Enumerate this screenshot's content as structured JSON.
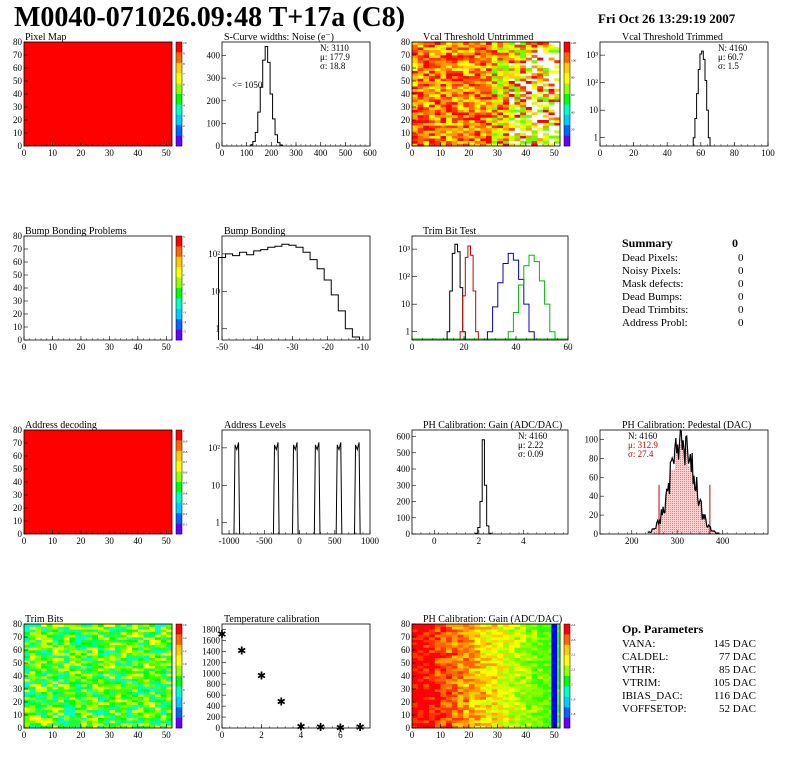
{
  "header": {
    "title": "M0040-071026.09:48 T+17a (C8)",
    "date": "Fri Oct 26 13:29:19 2007"
  },
  "colors": {
    "hist_black": "#000000",
    "trim_red": "#cc0000",
    "trim_blue": "#0000cc",
    "trim_green": "#00bb00",
    "pedestal_fill": "#cc0000",
    "red_map": "#ff0000"
  },
  "summary": {
    "title": "Summary",
    "value": "0",
    "rows": [
      {
        "label": "Dead Pixels:",
        "value": "0"
      },
      {
        "label": "Noisy Pixels:",
        "value": "0"
      },
      {
        "label": "Mask defects:",
        "value": "0"
      },
      {
        "label": "Dead Bumps:",
        "value": "0"
      },
      {
        "label": "Dead Trimbits:",
        "value": "0"
      },
      {
        "label": "Address Probl:",
        "value": "0"
      }
    ]
  },
  "op_params": {
    "title": "Op. Parameters",
    "rows": [
      {
        "label": "VANA:",
        "value": "145 DAC"
      },
      {
        "label": "CALDEL:",
        "value": "77 DAC"
      },
      {
        "label": "VTHR:",
        "value": "85 DAC"
      },
      {
        "label": "VTRIM:",
        "value": "105 DAC"
      },
      {
        "label": "IBIAS_DAC:",
        "value": "116 DAC"
      },
      {
        "label": "VOFFSETOP:",
        "value": "52 DAC"
      }
    ]
  },
  "chart_data": [
    {
      "type": "heatmap",
      "title": "Pixel Map",
      "xticks": [
        0,
        10,
        20,
        30,
        40,
        50
      ],
      "yticks": [
        0,
        10,
        20,
        30,
        40,
        50,
        60,
        70,
        80
      ],
      "xlim": [
        0,
        52
      ],
      "ylim": [
        0,
        80
      ],
      "pattern": "uniform-red",
      "palette": {
        "ticks": [
          "1",
          "2",
          "3",
          "4",
          "5",
          "6",
          "7",
          "8",
          "9",
          "10"
        ]
      }
    },
    {
      "type": "histogram",
      "title": "S-Curve widths: Noise (e⁻)",
      "xticks": [
        0,
        100,
        200,
        300,
        400,
        500,
        600
      ],
      "yticks": [
        0,
        100,
        200,
        300,
        400
      ],
      "xlim": [
        0,
        600
      ],
      "ylim": [
        0,
        460
      ],
      "stats": [
        "N: 3110",
        "μ: 177.9",
        "σ: 18.8"
      ],
      "annotation": "<= 1050",
      "x": [
        120,
        130,
        140,
        150,
        160,
        170,
        180,
        190,
        200,
        210,
        220,
        230,
        240
      ],
      "values": [
        5,
        20,
        60,
        150,
        260,
        380,
        440,
        370,
        230,
        120,
        50,
        15,
        4
      ]
    },
    {
      "type": "heatmap",
      "title": "Vcal Threshold Untrimmed",
      "xticks": [
        0,
        10,
        20,
        30,
        40,
        50
      ],
      "yticks": [
        0,
        10,
        20,
        30,
        40,
        50,
        60,
        70,
        80
      ],
      "xlim": [
        0,
        52
      ],
      "ylim": [
        0,
        80
      ],
      "pattern": "noise-fade-right",
      "palette": {
        "ticks": [
          "20",
          "40",
          "60",
          "80",
          "100",
          "120"
        ]
      }
    },
    {
      "type": "histogram",
      "title": "Vcal Threshold Trimmed",
      "log": true,
      "xticks": [
        0,
        20,
        40,
        60,
        80,
        100
      ],
      "ytick_labels": [
        "1",
        "10",
        "10²",
        "10³"
      ],
      "xlim": [
        0,
        100
      ],
      "ylim": [
        0.5,
        3000
      ],
      "stats": [
        "N: 4160",
        "μ: 60.7",
        "σ:  1.5"
      ],
      "x": [
        56,
        57,
        58,
        59,
        60,
        61,
        62,
        63,
        64,
        65
      ],
      "values": [
        1,
        5,
        40,
        300,
        1100,
        1400,
        700,
        120,
        10,
        1
      ]
    },
    {
      "type": "heatmap",
      "title": "Bump Bonding Problems",
      "xticks": [
        0,
        10,
        20,
        30,
        40,
        50
      ],
      "yticks": [
        0,
        10,
        20,
        30,
        40,
        50,
        60,
        70,
        80
      ],
      "xlim": [
        0,
        52
      ],
      "ylim": [
        0,
        80
      ],
      "pattern": "empty",
      "palette": {
        "ticks": [
          "-5",
          "-4",
          "-3",
          "-2",
          "-1",
          "0",
          "1",
          "2",
          "3",
          "4",
          "5"
        ]
      }
    },
    {
      "type": "histogram",
      "title": "Bump Bonding",
      "log": true,
      "xticks": [
        -50,
        -40,
        -30,
        -20,
        -10
      ],
      "ytick_labels": [
        "1",
        "10",
        "10²"
      ],
      "xlim": [
        -50,
        -8
      ],
      "ylim": [
        0.5,
        300
      ],
      "x": [
        -50,
        -48,
        -46,
        -44,
        -42,
        -40,
        -38,
        -36,
        -34,
        -32,
        -30,
        -28,
        -26,
        -24,
        -22,
        -20,
        -18,
        -16,
        -14,
        -12
      ],
      "values": [
        80,
        100,
        90,
        110,
        95,
        120,
        130,
        150,
        160,
        180,
        170,
        150,
        110,
        70,
        40,
        20,
        8,
        3,
        1,
        0.6
      ]
    },
    {
      "type": "histogram",
      "title": "Trim Bit Test",
      "log": true,
      "xticks": [
        0,
        20,
        40,
        60
      ],
      "ytick_labels": [
        "1",
        "10",
        "10²",
        "10³"
      ],
      "xlim": [
        0,
        60
      ],
      "ylim": [
        0.5,
        3000
      ],
      "series": [
        {
          "name": "",
          "color": "black",
          "x": [
            14,
            15,
            16,
            17,
            18,
            19,
            20
          ],
          "values": [
            1,
            30,
            700,
            1500,
            800,
            40,
            1
          ]
        },
        {
          "name": "",
          "color": "red",
          "x": [
            19,
            20,
            21,
            22,
            23,
            24,
            25
          ],
          "values": [
            1,
            20,
            500,
            1300,
            600,
            30,
            1
          ]
        },
        {
          "name": "",
          "color": "blue",
          "x": [
            30,
            32,
            34,
            36,
            38,
            40,
            42,
            44,
            46
          ],
          "values": [
            1,
            8,
            60,
            300,
            700,
            400,
            80,
            10,
            1
          ]
        },
        {
          "name": "",
          "color": "green",
          "x": [
            38,
            40,
            42,
            44,
            46,
            48,
            50,
            52,
            54
          ],
          "values": [
            1,
            5,
            50,
            250,
            600,
            350,
            70,
            10,
            1
          ]
        }
      ]
    },
    {
      "type": "heatmap",
      "title": "Address decoding",
      "xticks": [
        0,
        10,
        20,
        30,
        40,
        50
      ],
      "yticks": [
        0,
        10,
        20,
        30,
        40,
        50,
        60,
        70,
        80
      ],
      "xlim": [
        0,
        52
      ],
      "ylim": [
        0,
        80
      ],
      "pattern": "uniform-red",
      "palette": {
        "ticks": [
          "0.1",
          "0.2",
          "0.3",
          "0.4",
          "0.5",
          "0.6",
          "0.7",
          "0.8",
          "0.9",
          "1"
        ]
      }
    },
    {
      "type": "histogram",
      "title": "Address Levels",
      "log": true,
      "xticks": [
        -1000,
        -500,
        0,
        500,
        1000
      ],
      "ytick_labels": [
        "1",
        "10",
        "10²"
      ],
      "xlim": [
        -1100,
        1000
      ],
      "ylim": [
        0.5,
        300
      ],
      "peaks": [
        -890,
        -330,
        -60,
        250,
        560,
        820
      ]
    },
    {
      "type": "histogram",
      "title": "PH Calibration: Gain (ADC/DAC)",
      "xticks": [
        0,
        2,
        4
      ],
      "yticks": [
        0,
        100,
        200,
        300,
        400,
        500,
        600
      ],
      "xlim": [
        -1,
        6
      ],
      "ylim": [
        0,
        640
      ],
      "stats": [
        "N: 4160",
        "μ: 2.22",
        "σ: 0.09"
      ],
      "x": [
        1.9,
        2.0,
        2.1,
        2.2,
        2.3,
        2.4,
        2.5
      ],
      "values": [
        5,
        40,
        200,
        580,
        300,
        50,
        5
      ]
    },
    {
      "type": "histogram",
      "title": "PH Calibration: Pedestal (DAC)",
      "xticks": [
        200,
        300,
        400
      ],
      "yticks": [
        0,
        20,
        40,
        60,
        80,
        100
      ],
      "xlim": [
        130,
        500
      ],
      "ylim": [
        0,
        110
      ],
      "stats": [
        "N: 4160",
        "μ: 312.9",
        "σ: 27.4"
      ],
      "x": [
        240,
        250,
        260,
        270,
        280,
        290,
        300,
        310,
        320,
        330,
        340,
        350,
        360,
        370,
        380,
        390
      ],
      "values": [
        2,
        5,
        12,
        25,
        45,
        68,
        85,
        95,
        90,
        72,
        55,
        35,
        18,
        8,
        3,
        1
      ]
    },
    {
      "type": "heatmap",
      "title": "Trim Bits",
      "xticks": [
        0,
        10,
        20,
        30,
        40,
        50
      ],
      "yticks": [
        0,
        10,
        20,
        30,
        40,
        50,
        60,
        70,
        80
      ],
      "xlim": [
        0,
        52
      ],
      "ylim": [
        0,
        80
      ],
      "pattern": "noise-green",
      "palette": {
        "ticks": [
          "2",
          "4",
          "6",
          "8",
          "10",
          "12",
          "14",
          "16"
        ]
      }
    },
    {
      "type": "scatter",
      "title": "Temperature calibration",
      "xticks": [
        0,
        2,
        4,
        6
      ],
      "yticks": [
        0,
        200,
        400,
        600,
        800,
        1000,
        1200,
        1400,
        1600,
        1800
      ],
      "xlim": [
        0,
        7.5
      ],
      "ylim": [
        0,
        1900
      ],
      "x": [
        0,
        1,
        2,
        3,
        4,
        5,
        6,
        7
      ],
      "y": [
        1720,
        1420,
        960,
        480,
        30,
        20,
        10,
        20
      ]
    },
    {
      "type": "heatmap",
      "title": "PH Calibration: Gain (ADC/DAC)",
      "xticks": [
        0,
        10,
        20,
        30,
        40,
        50
      ],
      "yticks": [
        0,
        10,
        20,
        30,
        40,
        50,
        60,
        70,
        80
      ],
      "xlim": [
        0,
        52
      ],
      "ylim": [
        0,
        80
      ],
      "pattern": "gradient-red-green",
      "palette": {
        "ticks": [
          "1.8",
          "1.9",
          "2",
          "2.1",
          "2.2",
          "2.3",
          "2.4"
        ]
      }
    }
  ]
}
